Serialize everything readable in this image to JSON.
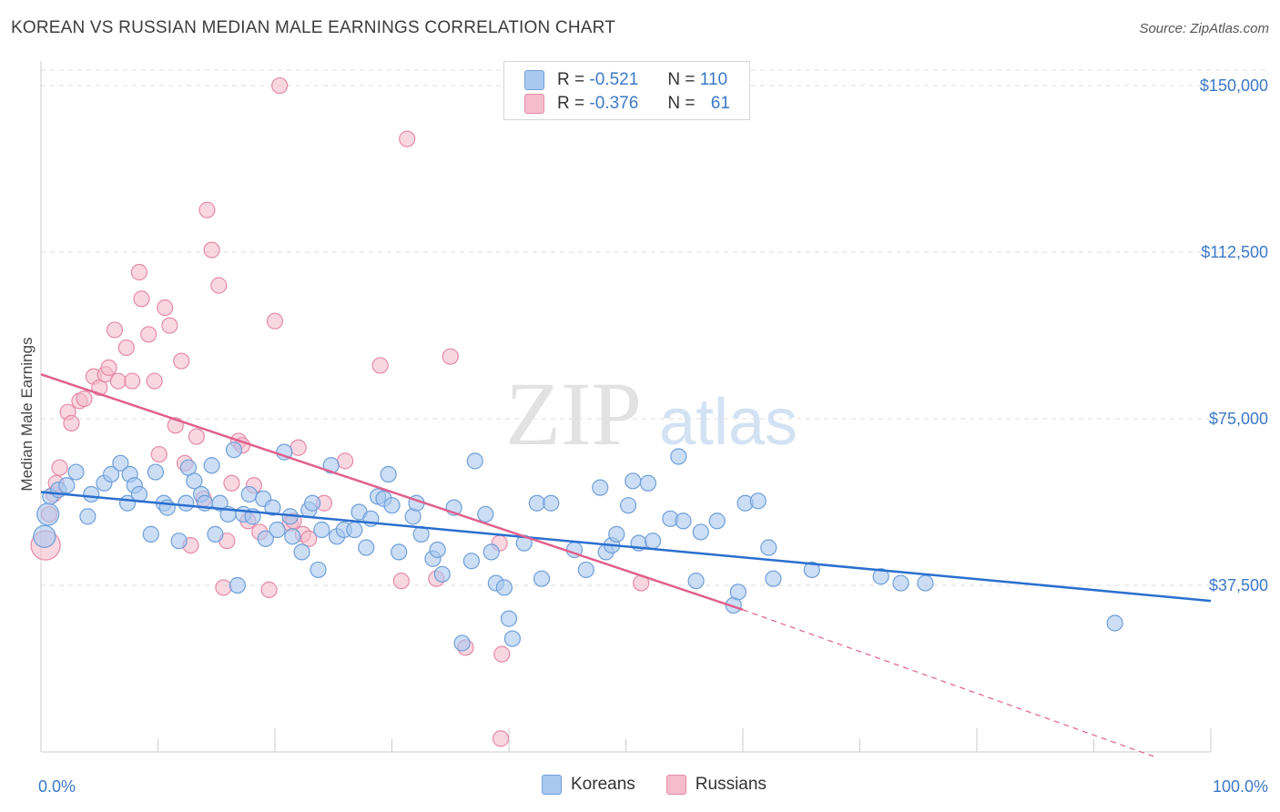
{
  "title": "KOREAN VS RUSSIAN MEDIAN MALE EARNINGS CORRELATION CHART",
  "source": "Source: ZipAtlas.com",
  "watermark": {
    "zip": "ZIP",
    "atlas": "atlas"
  },
  "colors": {
    "korean_fill": "#a9c8f0",
    "korean_stroke": "#6f9fd8",
    "korean_line": "#2a6fcf",
    "russian_fill": "#f5bccd",
    "russian_stroke": "#e58aa8",
    "russian_line": "#e0608c",
    "tick_text": "#3c78c8",
    "grid": "#dddddd"
  },
  "legend": {
    "rows": [
      {
        "r_label": "R =",
        "r_value": "-0.521",
        "n_label": "N =",
        "n_value": "110"
      },
      {
        "r_label": "R =",
        "r_value": "-0.376",
        "n_label": "N =",
        "n_value": "61"
      }
    ]
  },
  "bottom_legend": {
    "korean": "Koreans",
    "russian": "Russians"
  },
  "chart_data": {
    "type": "scatter",
    "xlabel": "",
    "ylabel": "Median Male Earnings",
    "xlim": [
      0,
      100
    ],
    "ylim": [
      0,
      158000
    ],
    "x_tick_labels": [
      "0.0%",
      "100.0%"
    ],
    "y_ticks": [
      37500,
      75000,
      112500,
      150000
    ],
    "y_tick_labels": [
      "$37,500",
      "$75,000",
      "$112,500",
      "$150,000"
    ],
    "grid": "horizontal dashed",
    "series": [
      {
        "name": "Koreans",
        "trend": {
          "x": [
            0,
            100
          ],
          "y": [
            58500,
            34000
          ],
          "dashed_from": null
        },
        "points": [
          [
            0.3,
            48500,
            2
          ],
          [
            0.6,
            53500,
            2
          ],
          [
            0.8,
            57500,
            1
          ],
          [
            1.5,
            59000,
            1
          ],
          [
            2.2,
            60000,
            1
          ],
          [
            3.0,
            63000,
            1
          ],
          [
            4.0,
            53000,
            1
          ],
          [
            4.3,
            58000,
            1
          ],
          [
            5.4,
            60500,
            1
          ],
          [
            6.0,
            62500,
            1
          ],
          [
            6.8,
            65000,
            1
          ],
          [
            7.6,
            62500,
            1
          ],
          [
            7.4,
            56000,
            1
          ],
          [
            8.0,
            60000,
            1
          ],
          [
            8.4,
            58000,
            1
          ],
          [
            9.4,
            49000,
            1
          ],
          [
            9.8,
            63000,
            1
          ],
          [
            10.5,
            56000,
            1
          ],
          [
            10.8,
            55000,
            1
          ],
          [
            11.8,
            47500,
            1
          ],
          [
            12.4,
            56000,
            1
          ],
          [
            12.6,
            64000,
            1
          ],
          [
            13.1,
            61000,
            1
          ],
          [
            13.7,
            58000,
            1
          ],
          [
            14.0,
            56000,
            1
          ],
          [
            14.6,
            64500,
            1
          ],
          [
            14.9,
            49000,
            1
          ],
          [
            15.3,
            56000,
            1
          ],
          [
            16.0,
            53500,
            1
          ],
          [
            16.5,
            68000,
            1
          ],
          [
            16.8,
            37500,
            1
          ],
          [
            17.3,
            53500,
            1
          ],
          [
            17.8,
            58000,
            1
          ],
          [
            18.1,
            53000,
            1
          ],
          [
            19.0,
            57000,
            1
          ],
          [
            19.2,
            48000,
            1
          ],
          [
            19.8,
            55000,
            1
          ],
          [
            20.2,
            50000,
            1
          ],
          [
            20.8,
            67500,
            1
          ],
          [
            21.3,
            53000,
            1
          ],
          [
            21.5,
            48500,
            1
          ],
          [
            22.3,
            45000,
            1
          ],
          [
            22.9,
            54500,
            1
          ],
          [
            23.2,
            56000,
            1
          ],
          [
            23.7,
            41000,
            1
          ],
          [
            24.0,
            50000,
            1
          ],
          [
            24.8,
            64500,
            1
          ],
          [
            25.3,
            48500,
            1
          ],
          [
            25.9,
            50000,
            1
          ],
          [
            26.8,
            50000,
            1
          ],
          [
            27.2,
            54000,
            1
          ],
          [
            27.8,
            46000,
            1
          ],
          [
            28.2,
            52500,
            1
          ],
          [
            28.8,
            57500,
            1
          ],
          [
            29.3,
            57000,
            1
          ],
          [
            29.7,
            62500,
            1
          ],
          [
            30.0,
            55500,
            1
          ],
          [
            30.6,
            45000,
            1
          ],
          [
            31.8,
            53000,
            1
          ],
          [
            32.1,
            56000,
            1
          ],
          [
            32.5,
            49000,
            1
          ],
          [
            33.5,
            43500,
            1
          ],
          [
            33.9,
            45500,
            1
          ],
          [
            34.3,
            40000,
            1
          ],
          [
            35.3,
            55000,
            1
          ],
          [
            36.0,
            24500,
            1
          ],
          [
            36.8,
            43000,
            1
          ],
          [
            37.1,
            65500,
            1
          ],
          [
            38.0,
            53500,
            1
          ],
          [
            38.5,
            45000,
            1
          ],
          [
            38.9,
            38000,
            1
          ],
          [
            39.6,
            37000,
            1
          ],
          [
            40.0,
            30000,
            1
          ],
          [
            40.3,
            25500,
            1
          ],
          [
            41.3,
            47000,
            1
          ],
          [
            42.4,
            56000,
            1
          ],
          [
            42.8,
            39000,
            1
          ],
          [
            43.6,
            56000,
            1
          ],
          [
            45.6,
            45500,
            1
          ],
          [
            46.6,
            41000,
            1
          ],
          [
            47.8,
            59500,
            1
          ],
          [
            48.3,
            45000,
            1
          ],
          [
            48.8,
            46500,
            1
          ],
          [
            49.2,
            49000,
            1
          ],
          [
            50.2,
            55500,
            1
          ],
          [
            50.6,
            61000,
            1
          ],
          [
            51.1,
            47000,
            1
          ],
          [
            51.9,
            60500,
            1
          ],
          [
            52.3,
            47500,
            1
          ],
          [
            53.8,
            52500,
            1
          ],
          [
            54.5,
            66500,
            1
          ],
          [
            54.9,
            52000,
            1
          ],
          [
            56.0,
            38500,
            1
          ],
          [
            56.4,
            49500,
            1
          ],
          [
            57.8,
            52000,
            1
          ],
          [
            59.2,
            33000,
            1
          ],
          [
            59.6,
            36000,
            1
          ],
          [
            60.2,
            56000,
            1
          ],
          [
            61.3,
            56500,
            1
          ],
          [
            62.2,
            46000,
            1
          ],
          [
            62.6,
            39000,
            1
          ],
          [
            65.9,
            41000,
            1
          ],
          [
            71.8,
            39500,
            1
          ],
          [
            73.5,
            38000,
            1
          ],
          [
            75.6,
            38000,
            1
          ],
          [
            91.8,
            29000,
            1
          ]
        ]
      },
      {
        "name": "Russians",
        "trend": {
          "x": [
            0,
            60
          ],
          "y": [
            85000,
            32000
          ],
          "dashed_to": [
            100,
            0
          ]
        },
        "points": [
          [
            0.4,
            46500,
            3
          ],
          [
            0.7,
            53500,
            1
          ],
          [
            1.1,
            58000,
            1
          ],
          [
            1.3,
            60500,
            1
          ],
          [
            1.6,
            64000,
            1
          ],
          [
            2.3,
            76500,
            1
          ],
          [
            2.6,
            74000,
            1
          ],
          [
            3.3,
            79000,
            1
          ],
          [
            3.7,
            79500,
            1
          ],
          [
            4.5,
            84500,
            1
          ],
          [
            5.0,
            82000,
            1
          ],
          [
            5.5,
            85000,
            1
          ],
          [
            5.8,
            86500,
            1
          ],
          [
            6.3,
            95000,
            1
          ],
          [
            6.6,
            83500,
            1
          ],
          [
            7.3,
            91000,
            1
          ],
          [
            7.8,
            83500,
            1
          ],
          [
            8.4,
            108000,
            1
          ],
          [
            8.6,
            102000,
            1
          ],
          [
            9.2,
            94000,
            1
          ],
          [
            9.7,
            83500,
            1
          ],
          [
            10.1,
            67000,
            1
          ],
          [
            10.6,
            100000,
            1
          ],
          [
            11.0,
            96000,
            1
          ],
          [
            11.5,
            73500,
            1
          ],
          [
            12.0,
            88000,
            1
          ],
          [
            12.3,
            65000,
            1
          ],
          [
            12.8,
            46500,
            1
          ],
          [
            13.3,
            71000,
            1
          ],
          [
            13.9,
            57000,
            1
          ],
          [
            14.2,
            122000,
            1
          ],
          [
            14.6,
            113000,
            1
          ],
          [
            15.2,
            105000,
            1
          ],
          [
            15.6,
            37000,
            1
          ],
          [
            15.9,
            47500,
            1
          ],
          [
            16.3,
            60500,
            1
          ],
          [
            16.9,
            70000,
            1
          ],
          [
            17.2,
            69000,
            1
          ],
          [
            17.7,
            52000,
            1
          ],
          [
            18.2,
            60000,
            1
          ],
          [
            18.7,
            49500,
            1
          ],
          [
            19.5,
            36500,
            1
          ],
          [
            20.0,
            97000,
            1
          ],
          [
            20.4,
            150000,
            1
          ],
          [
            21.3,
            51500,
            1
          ],
          [
            21.6,
            52000,
            1
          ],
          [
            22.0,
            68500,
            1
          ],
          [
            22.4,
            49000,
            1
          ],
          [
            22.9,
            48000,
            1
          ],
          [
            24.2,
            56000,
            1
          ],
          [
            26.0,
            65500,
            1
          ],
          [
            29.0,
            87000,
            1
          ],
          [
            30.8,
            38500,
            1
          ],
          [
            31.3,
            138000,
            1
          ],
          [
            33.8,
            39000,
            1
          ],
          [
            35.0,
            89000,
            1
          ],
          [
            36.3,
            23500,
            1
          ],
          [
            39.2,
            47000,
            1
          ],
          [
            39.4,
            22000,
            1
          ],
          [
            39.3,
            3000,
            1
          ],
          [
            51.3,
            38000,
            1
          ]
        ]
      }
    ]
  }
}
